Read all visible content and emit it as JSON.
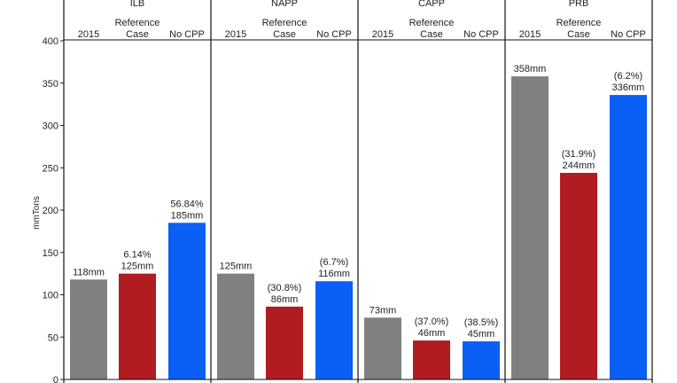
{
  "chart_data": {
    "type": "bar",
    "ylabel": "mmTons",
    "ylim": [
      0,
      400
    ],
    "yticks": [
      0,
      50,
      100,
      150,
      200,
      250,
      300,
      350,
      400
    ],
    "categories": [
      "2015",
      "Reference\nCase",
      "No CPP"
    ],
    "colors": [
      "#808080",
      "#b01c1f",
      "#0a5ff5"
    ],
    "panels": [
      {
        "name": "ILB",
        "values": [
          118,
          125,
          185
        ],
        "value_labels": [
          "118mm",
          "125mm",
          "185mm"
        ],
        "pct_labels": [
          "",
          "6.14%",
          "56.84%"
        ]
      },
      {
        "name": "NAPP",
        "values": [
          125,
          86,
          116
        ],
        "value_labels": [
          "125mm",
          "86mm",
          "116mm"
        ],
        "pct_labels": [
          "",
          "(30.8%)",
          "(6.7%)"
        ]
      },
      {
        "name": "CAPP",
        "values": [
          73,
          46,
          45
        ],
        "value_labels": [
          "73mm",
          "46mm",
          "45mm"
        ],
        "pct_labels": [
          "",
          "(37.0%)",
          "(38.5%)"
        ]
      },
      {
        "name": "PRB",
        "values": [
          358,
          244,
          336
        ],
        "value_labels": [
          "358mm",
          "244mm",
          "336mm"
        ],
        "pct_labels": [
          "",
          "(31.9%)",
          "(6.2%)"
        ]
      }
    ]
  }
}
